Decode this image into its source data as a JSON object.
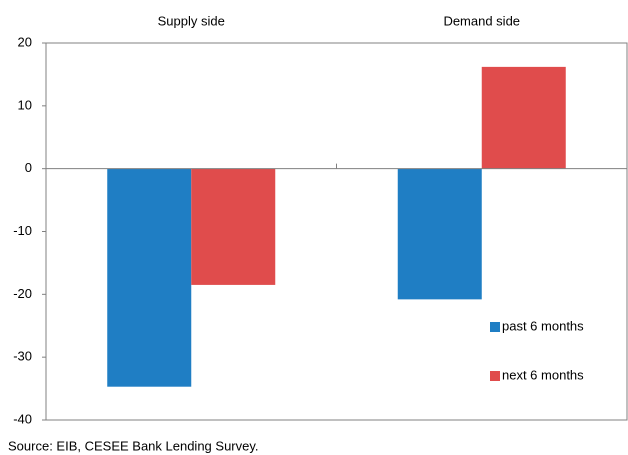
{
  "chart_data": {
    "type": "bar",
    "categories": [
      "Supply side",
      "Demand side"
    ],
    "series": [
      {
        "name": "past 6 months",
        "color": "#1f7ec4",
        "values": [
          -34.7,
          -20.8
        ]
      },
      {
        "name": "next 6 months",
        "color": "#e04c4c",
        "values": [
          -18.5,
          16.2
        ]
      }
    ],
    "ylim": [
      -40,
      20
    ],
    "yticks": [
      -40,
      -30,
      -20,
      -10,
      0,
      10,
      20
    ],
    "legend": "lower right",
    "source": "Source: EIB, CESEE Bank Lending Survey."
  }
}
